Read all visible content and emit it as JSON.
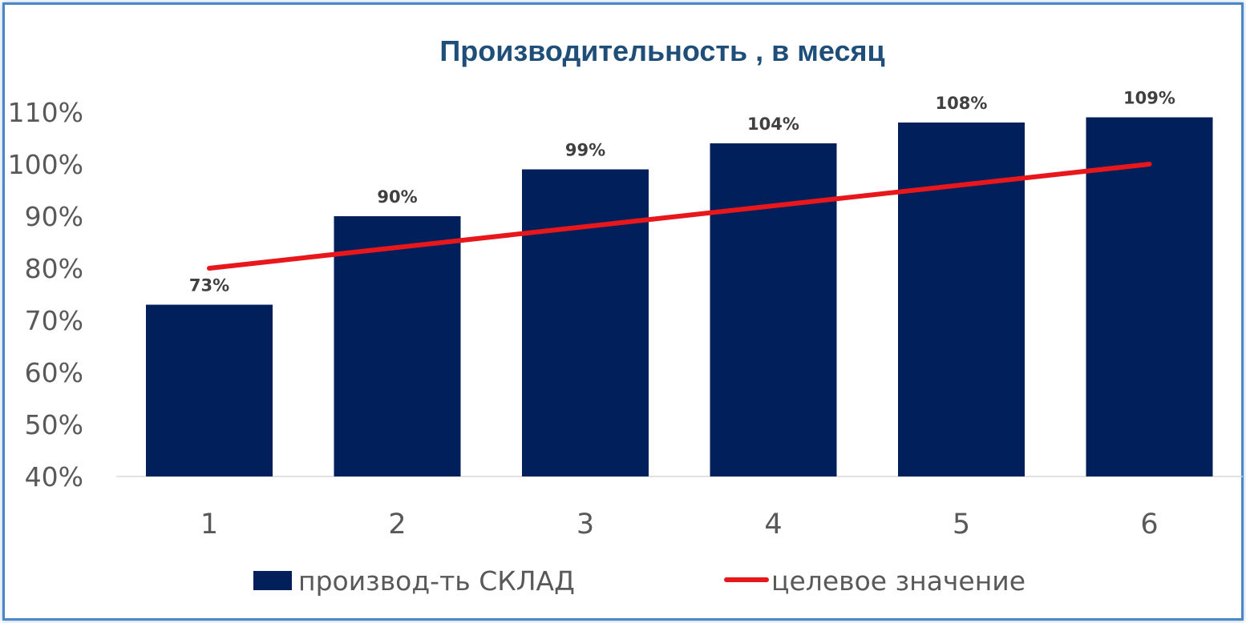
{
  "chart_data": {
    "type": "bar",
    "title": "Производительность , в месяц",
    "categories": [
      "1",
      "2",
      "3",
      "4",
      "5",
      "6"
    ],
    "series": [
      {
        "name": "производ-ть СКЛАД",
        "type": "bar",
        "values": [
          73,
          90,
          99,
          104,
          108,
          109
        ],
        "labels": [
          "73%",
          "90%",
          "99%",
          "104%",
          "108%",
          "109%"
        ],
        "color": "#001f5b"
      },
      {
        "name": "целевое значение",
        "type": "line",
        "values": [
          80,
          84,
          88,
          92,
          96,
          100
        ],
        "color": "#e8171b"
      }
    ],
    "ylim": [
      40,
      110
    ],
    "yticks": [
      "40%",
      "50%",
      "60%",
      "70%",
      "80%",
      "90%",
      "100%",
      "110%"
    ],
    "xlabel": "",
    "ylabel": "",
    "grid": false,
    "legend_position": "bottom",
    "title_color": "#1f4e79",
    "frame_color": "#4a86c8"
  }
}
